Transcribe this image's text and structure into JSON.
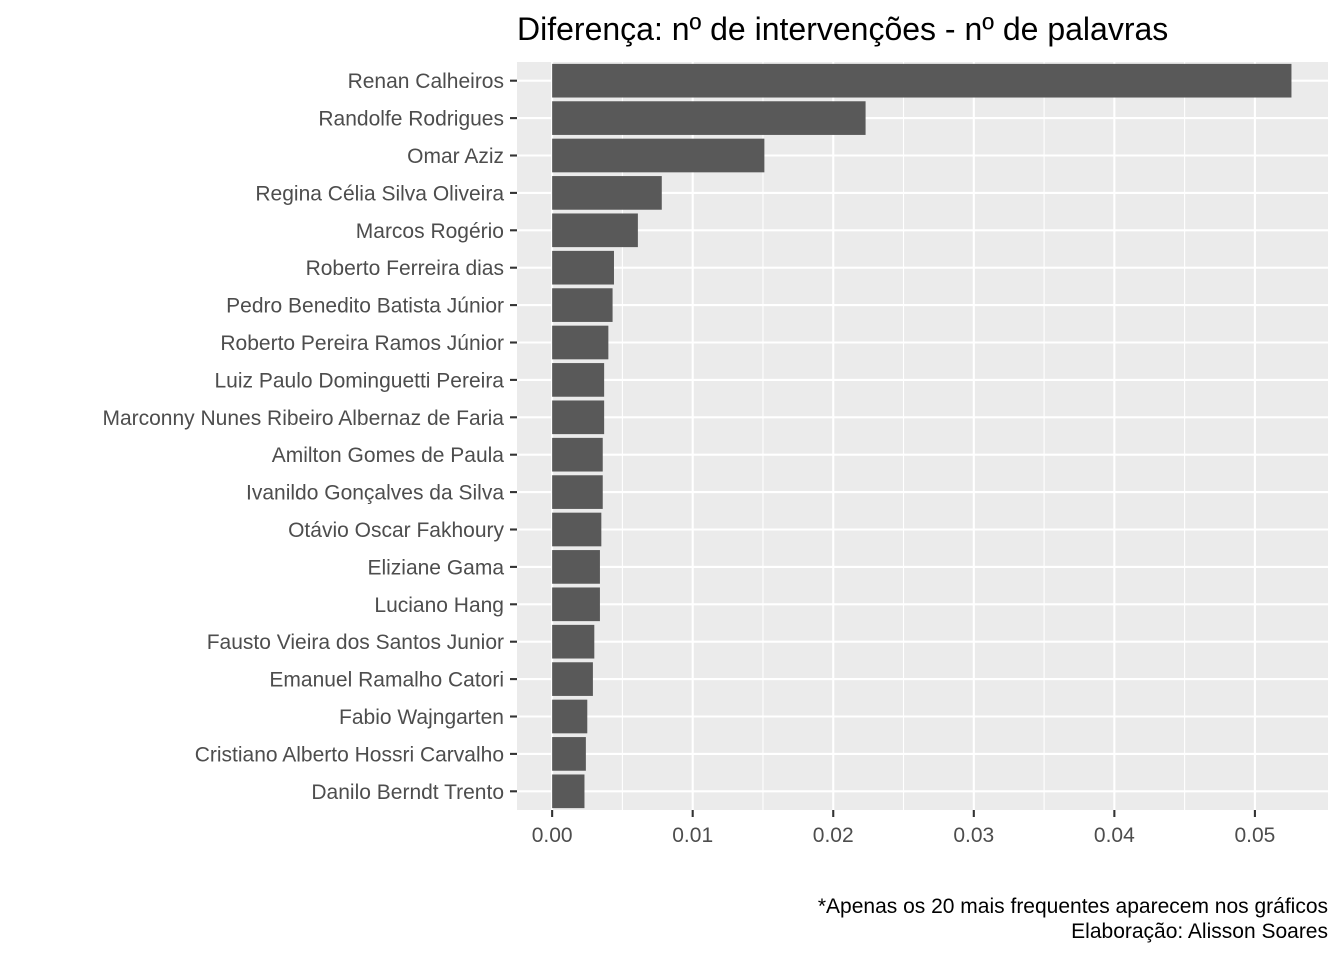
{
  "chart_data": {
    "type": "bar",
    "orientation": "horizontal",
    "title": "Diferença: nº de intervenções - nº de palavras",
    "xlabel": "",
    "ylabel": "",
    "categories": [
      "Renan Calheiros",
      "Randolfe Rodrigues",
      "Omar Aziz",
      "Regina Célia Silva Oliveira",
      "Marcos Rogério",
      "Roberto Ferreira dias",
      "Pedro Benedito Batista Júnior",
      "Roberto Pereira Ramos Júnior",
      "Luiz Paulo Dominguetti Pereira",
      "Marconny Nunes Ribeiro Albernaz de Faria",
      "Amilton Gomes de Paula",
      "Ivanildo Gonçalves da Silva",
      "Otávio Oscar Fakhoury",
      "Eliziane Gama",
      "Luciano Hang",
      "Fausto Vieira dos Santos Junior",
      "Emanuel Ramalho Catori",
      "Fabio Wajngarten",
      "Cristiano Alberto Hossri Carvalho",
      "Danilo Berndt Trento"
    ],
    "values": [
      0.0526,
      0.0223,
      0.0151,
      0.0078,
      0.0061,
      0.0044,
      0.0043,
      0.004,
      0.0037,
      0.0037,
      0.0036,
      0.0036,
      0.0035,
      0.0034,
      0.0034,
      0.003,
      0.0029,
      0.0025,
      0.0024,
      0.0023
    ],
    "xlim": [
      -0.0025,
      0.0552
    ],
    "xticks": [
      0.0,
      0.01,
      0.02,
      0.03,
      0.04,
      0.05
    ],
    "xtick_labels": [
      "0.00",
      "0.01",
      "0.02",
      "0.03",
      "0.04",
      "0.05"
    ],
    "grid": true,
    "panel_background": "#EBEBEB",
    "bar_color": "#595959",
    "grid_color": "#FFFFFF"
  },
  "caption": {
    "line1": "*Apenas os 20 mais frequentes aparecem nos gráficos",
    "line2": "Elaboração: Alisson Soares"
  }
}
